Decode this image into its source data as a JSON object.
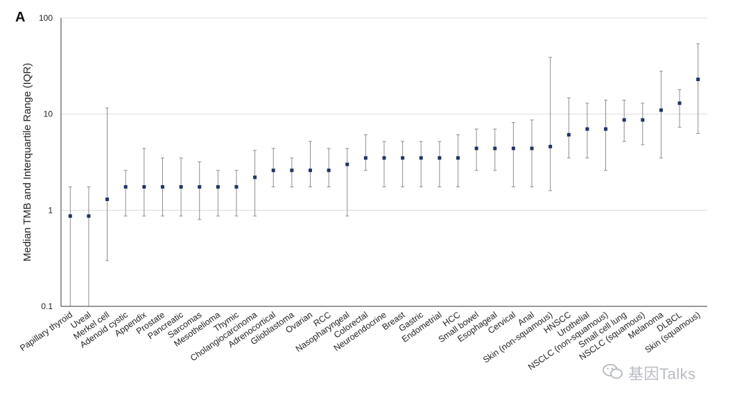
{
  "panel_label": "A",
  "watermark": {
    "text": "基因Talks",
    "icon": "wechat-icon"
  },
  "colors": {
    "marker": "#1f3566",
    "errorbar": "#8c8c8c",
    "grid": "#dcdcdc",
    "axis": "#333333",
    "text": "#222222"
  },
  "chart_data": {
    "type": "scatter",
    "title": "",
    "xlabel": "",
    "ylabel": "Median TMB  and Interquartile Range (IQR)",
    "yscale": "log",
    "ylim": [
      0.1,
      100
    ],
    "yticks": [
      0.1,
      1,
      10,
      100
    ],
    "ytick_labels": [
      "0.1",
      "1",
      "10",
      "100"
    ],
    "grid": true,
    "legend": "none",
    "categories": [
      "Papillary thyroid",
      "Uveal",
      "Merkel cell",
      "Adenoid cystic",
      "Appendix",
      "Prostate",
      "Pancreatic",
      "Sarcomas",
      "Mesothelioma",
      "Thymic",
      "Cholangiocarcinoma",
      "Adrenocortical",
      "Glioblastoma",
      "Ovarian",
      "RCC",
      "Nasopharyngeal",
      "Colorectal",
      "Neuroendocrine",
      "Breast",
      "Gastric",
      "Endometrial",
      "HCC",
      "Small bowel",
      "Esophageal",
      "Cervical",
      "Anal",
      "Skin (non-squamous)",
      "HNSCC",
      "Urothelial",
      "NSCLC (non-squamous)",
      "Small cell lung",
      "NSCLC (squamous)",
      "Melanoma",
      "DLBCL",
      "Skin (squamous)"
    ],
    "median": [
      0.87,
      0.87,
      1.3,
      1.75,
      1.75,
      1.75,
      1.75,
      1.75,
      1.75,
      1.75,
      2.2,
      2.6,
      2.6,
      2.6,
      2.6,
      3.0,
      3.5,
      3.5,
      3.5,
      3.5,
      3.5,
      3.5,
      4.4,
      4.4,
      4.4,
      4.4,
      4.6,
      6.1,
      7.0,
      7.0,
      8.7,
      8.7,
      11.0,
      13.0,
      23.0
    ],
    "q1": [
      0.1,
      0.1,
      0.3,
      0.87,
      0.87,
      0.87,
      0.87,
      0.8,
      0.87,
      0.87,
      0.87,
      1.75,
      1.75,
      1.75,
      1.75,
      0.87,
      2.6,
      1.75,
      1.75,
      1.75,
      1.75,
      1.75,
      2.6,
      2.6,
      1.75,
      1.75,
      1.6,
      3.5,
      3.5,
      2.6,
      5.2,
      4.8,
      3.5,
      7.3,
      6.3
    ],
    "q3": [
      1.75,
      1.75,
      11.6,
      2.6,
      4.4,
      3.5,
      3.5,
      3.2,
      2.6,
      2.6,
      4.2,
      4.4,
      3.5,
      5.2,
      4.4,
      4.4,
      6.1,
      5.2,
      5.2,
      5.2,
      5.2,
      6.1,
      7.0,
      7.0,
      8.2,
      8.7,
      39.0,
      14.8,
      13.0,
      14.0,
      14.0,
      13.0,
      28.0,
      18.0,
      54.0
    ]
  }
}
